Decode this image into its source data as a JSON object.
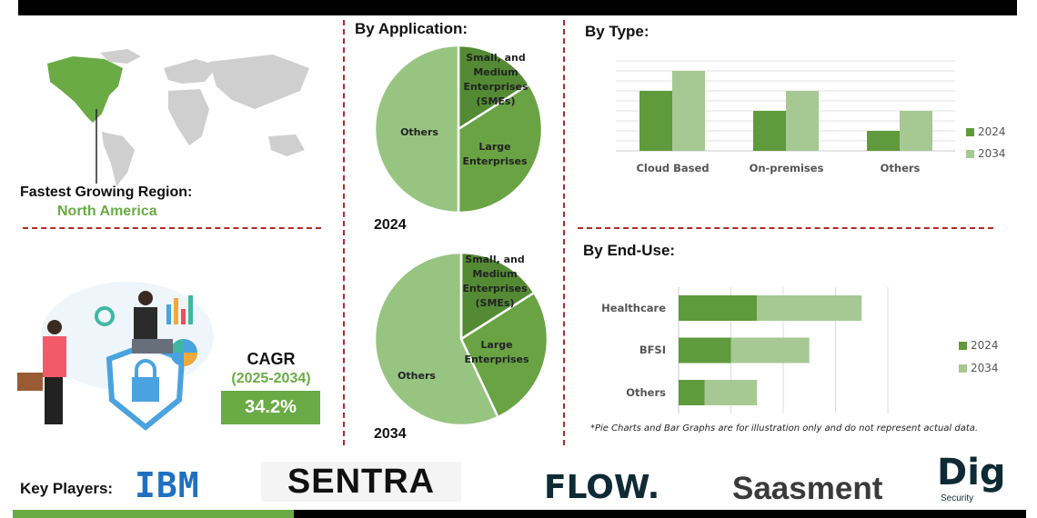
{
  "region": {
    "label": "Fastest Growing Region:",
    "value": "North America"
  },
  "cagr": {
    "label": "CAGR",
    "period": "(2025-2034)",
    "value": "34.2%"
  },
  "key_players": {
    "label": "Key Players:",
    "logos": [
      "IBM",
      "SENTRA",
      "FLOW.",
      "Saasment",
      "Dig",
      "Security"
    ]
  },
  "footnote": "*Pie Charts and Bar Graphs are for illustration only and do not represent actual data.",
  "colors": {
    "dark_green": "#5f9a3c",
    "light_green": "#a6c993",
    "sme": "#548a34",
    "large": "#6aa343",
    "others": "#98c482",
    "accent": "#6aab45",
    "divider": "#b02a2a"
  },
  "chart_data": [
    {
      "type": "pie",
      "title": "By Application:",
      "year_label": "2024",
      "categories": [
        "Small, and Medium Enterprises (SMEs)",
        "Large Enterprises",
        "Others"
      ],
      "values": [
        16,
        34,
        50
      ]
    },
    {
      "type": "pie",
      "year_label": "2034",
      "categories": [
        "Small, and Medium Enterprises (SMEs)",
        "Large Enterprises",
        "Others"
      ],
      "values": [
        16,
        27,
        57
      ]
    },
    {
      "type": "bar",
      "title": "By Type:",
      "categories": [
        "Cloud Based",
        "On-premises",
        "Others"
      ],
      "series": [
        {
          "name": "2024",
          "values": [
            6,
            4,
            2
          ]
        },
        {
          "name": "2034",
          "values": [
            8,
            6,
            4
          ]
        }
      ],
      "ylim": [
        0,
        9
      ],
      "grid": true,
      "legend": "right"
    },
    {
      "type": "bar",
      "orientation": "horizontal",
      "stacked": true,
      "title": "By End-Use:",
      "categories": [
        "Healthcare",
        "BFSI",
        "Others"
      ],
      "series": [
        {
          "name": "2024",
          "values": [
            1.5,
            1.0,
            0.5
          ]
        },
        {
          "name": "2034",
          "values": [
            2.0,
            1.5,
            1.0
          ]
        }
      ],
      "xlim": [
        0,
        4
      ],
      "grid": true,
      "legend": "right"
    }
  ]
}
